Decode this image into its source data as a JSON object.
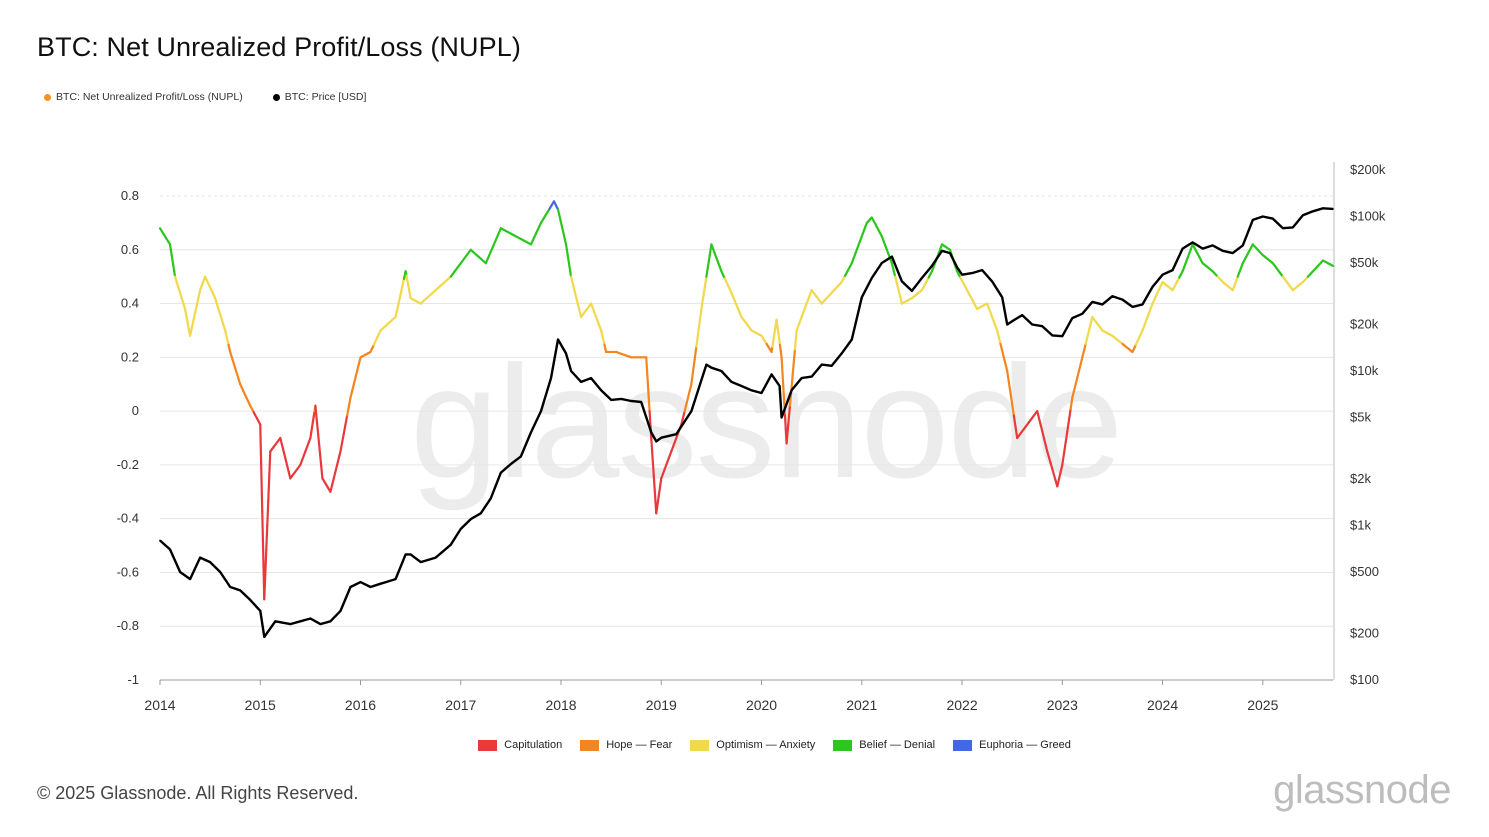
{
  "title": "BTC: Net Unrealized Profit/Loss (NUPL)",
  "top_legend": [
    {
      "label": "BTC: Net Unrealized Profit/Loss (NUPL)",
      "color": "#f7931a"
    },
    {
      "label": "BTC: Price [USD]",
      "color": "#000000"
    }
  ],
  "zone_legend": [
    {
      "label": "Capitulation",
      "color": "#e8393b"
    },
    {
      "label": "Hope — Fear",
      "color": "#f5851f"
    },
    {
      "label": "Optimism — Anxiety",
      "color": "#f2d84b"
    },
    {
      "label": "Belief — Denial",
      "color": "#2cc71e"
    },
    {
      "label": "Euphoria — Greed",
      "color": "#4466e8"
    }
  ],
  "watermark": "glassnode",
  "copyright": "© 2025 Glassnode. All Rights Reserved.",
  "brand": "glassnode",
  "chart_data": {
    "type": "line",
    "title": "BTC: Net Unrealized Profit/Loss (NUPL)",
    "x_ticks": [
      "2014",
      "2015",
      "2016",
      "2017",
      "2018",
      "2019",
      "2020",
      "2021",
      "2022",
      "2023",
      "2024",
      "2025"
    ],
    "x_range": [
      2014.0,
      2025.7
    ],
    "left_axis": {
      "ticks": [
        "0.8",
        "0.6",
        "0.4",
        "0.2",
        "0",
        "-0.2",
        "-0.4",
        "-0.6",
        "-0.8",
        "-1"
      ],
      "range": [
        -1,
        0.8
      ]
    },
    "right_axis": {
      "scale": "log",
      "ticks": [
        "$200k",
        "$100k",
        "$50k",
        "$20k",
        "$10k",
        "$5k",
        "$2k",
        "$1k",
        "$500",
        "$200",
        "$100"
      ],
      "range": [
        100,
        200000
      ]
    },
    "grid": true,
    "zones": [
      {
        "name": "Capitulation",
        "max": 0,
        "color": "#e8393b"
      },
      {
        "name": "Hope — Fear",
        "min": 0,
        "max": 0.25,
        "color": "#f5851f"
      },
      {
        "name": "Optimism — Anxiety",
        "min": 0.25,
        "max": 0.5,
        "color": "#f2d84b"
      },
      {
        "name": "Belief — Denial",
        "min": 0.5,
        "max": 0.75,
        "color": "#2cc71e"
      },
      {
        "name": "Euphoria — Greed",
        "min": 0.75,
        "color": "#4466e8"
      }
    ],
    "series": [
      {
        "name": "BTC: Net Unrealized Profit/Loss (NUPL)",
        "axis": "left",
        "x": [
          2014.0,
          2014.1,
          2014.15,
          2014.25,
          2014.3,
          2014.4,
          2014.45,
          2014.55,
          2014.65,
          2014.7,
          2014.8,
          2014.9,
          2015.0,
          2015.04,
          2015.1,
          2015.2,
          2015.3,
          2015.4,
          2015.5,
          2015.55,
          2015.62,
          2015.7,
          2015.8,
          2015.9,
          2016.0,
          2016.1,
          2016.2,
          2016.35,
          2016.45,
          2016.5,
          2016.6,
          2016.75,
          2016.9,
          2017.0,
          2017.1,
          2017.25,
          2017.4,
          2017.55,
          2017.7,
          2017.8,
          2017.93,
          2017.97,
          2018.05,
          2018.1,
          2018.2,
          2018.3,
          2018.4,
          2018.45,
          2018.55,
          2018.7,
          2018.85,
          2018.9,
          2018.95,
          2019.0,
          2019.1,
          2019.2,
          2019.3,
          2019.4,
          2019.5,
          2019.6,
          2019.7,
          2019.8,
          2019.9,
          2020.0,
          2020.1,
          2020.15,
          2020.2,
          2020.25,
          2020.35,
          2020.5,
          2020.6,
          2020.7,
          2020.8,
          2020.9,
          2021.0,
          2021.05,
          2021.1,
          2021.2,
          2021.3,
          2021.4,
          2021.5,
          2021.6,
          2021.7,
          2021.8,
          2021.88,
          2021.95,
          2022.05,
          2022.15,
          2022.25,
          2022.35,
          2022.45,
          2022.55,
          2022.65,
          2022.75,
          2022.85,
          2022.95,
          2023.0,
          2023.1,
          2023.2,
          2023.3,
          2023.4,
          2023.5,
          2023.6,
          2023.7,
          2023.8,
          2023.9,
          2024.0,
          2024.1,
          2024.2,
          2024.3,
          2024.4,
          2024.5,
          2024.6,
          2024.7,
          2024.8,
          2024.9,
          2025.0,
          2025.1,
          2025.2,
          2025.3,
          2025.4,
          2025.5,
          2025.6,
          2025.7
        ],
        "y": [
          0.68,
          0.62,
          0.5,
          0.38,
          0.28,
          0.45,
          0.5,
          0.42,
          0.3,
          0.22,
          0.1,
          0.02,
          -0.05,
          -0.7,
          -0.15,
          -0.1,
          -0.25,
          -0.2,
          -0.1,
          0.02,
          -0.25,
          -0.3,
          -0.15,
          0.05,
          0.2,
          0.22,
          0.3,
          0.35,
          0.52,
          0.42,
          0.4,
          0.45,
          0.5,
          0.55,
          0.6,
          0.55,
          0.68,
          0.65,
          0.62,
          0.7,
          0.78,
          0.75,
          0.62,
          0.5,
          0.35,
          0.4,
          0.3,
          0.22,
          0.22,
          0.2,
          0.2,
          -0.1,
          -0.38,
          -0.25,
          -0.15,
          -0.05,
          0.1,
          0.38,
          0.62,
          0.52,
          0.44,
          0.35,
          0.3,
          0.28,
          0.22,
          0.34,
          0.2,
          -0.12,
          0.3,
          0.45,
          0.4,
          0.44,
          0.48,
          0.55,
          0.65,
          0.7,
          0.72,
          0.65,
          0.55,
          0.4,
          0.42,
          0.45,
          0.52,
          0.62,
          0.6,
          0.52,
          0.45,
          0.38,
          0.4,
          0.3,
          0.15,
          -0.1,
          -0.05,
          0.0,
          -0.15,
          -0.28,
          -0.2,
          0.05,
          0.2,
          0.35,
          0.3,
          0.28,
          0.25,
          0.22,
          0.3,
          0.4,
          0.48,
          0.45,
          0.52,
          0.62,
          0.55,
          0.52,
          0.48,
          0.45,
          0.55,
          0.62,
          0.58,
          0.55,
          0.5,
          0.45,
          0.48,
          0.52,
          0.56,
          0.54
        ]
      },
      {
        "name": "BTC: Price [USD]",
        "axis": "right",
        "x": [
          2014.0,
          2014.1,
          2014.2,
          2014.3,
          2014.4,
          2014.5,
          2014.6,
          2014.7,
          2014.8,
          2014.9,
          2015.0,
          2015.04,
          2015.15,
          2015.3,
          2015.4,
          2015.5,
          2015.6,
          2015.7,
          2015.8,
          2015.9,
          2016.0,
          2016.1,
          2016.2,
          2016.35,
          2016.45,
          2016.5,
          2016.6,
          2016.75,
          2016.9,
          2017.0,
          2017.1,
          2017.2,
          2017.3,
          2017.4,
          2017.5,
          2017.6,
          2017.7,
          2017.8,
          2017.9,
          2017.97,
          2018.05,
          2018.1,
          2018.2,
          2018.3,
          2018.4,
          2018.5,
          2018.6,
          2018.7,
          2018.8,
          2018.9,
          2018.95,
          2019.0,
          2019.15,
          2019.3,
          2019.45,
          2019.5,
          2019.6,
          2019.7,
          2019.8,
          2019.9,
          2020.0,
          2020.1,
          2020.18,
          2020.2,
          2020.3,
          2020.4,
          2020.5,
          2020.6,
          2020.7,
          2020.8,
          2020.9,
          2021.0,
          2021.1,
          2021.2,
          2021.3,
          2021.4,
          2021.5,
          2021.6,
          2021.7,
          2021.8,
          2021.88,
          2021.95,
          2022.0,
          2022.1,
          2022.2,
          2022.3,
          2022.4,
          2022.45,
          2022.5,
          2022.6,
          2022.7,
          2022.8,
          2022.9,
          2023.0,
          2023.1,
          2023.2,
          2023.3,
          2023.4,
          2023.5,
          2023.6,
          2023.7,
          2023.8,
          2023.9,
          2024.0,
          2024.1,
          2024.2,
          2024.3,
          2024.4,
          2024.5,
          2024.6,
          2024.7,
          2024.8,
          2024.9,
          2025.0,
          2025.1,
          2025.2,
          2025.3,
          2025.4,
          2025.5,
          2025.6,
          2025.7
        ],
        "y": [
          800,
          700,
          500,
          450,
          620,
          580,
          500,
          400,
          380,
          330,
          280,
          190,
          240,
          230,
          240,
          250,
          230,
          240,
          280,
          400,
          430,
          400,
          420,
          450,
          650,
          650,
          580,
          620,
          750,
          950,
          1100,
          1200,
          1500,
          2200,
          2500,
          2800,
          4000,
          5500,
          9000,
          16000,
          13000,
          10000,
          8500,
          9000,
          7500,
          6500,
          6600,
          6400,
          6300,
          4000,
          3500,
          3700,
          3900,
          5500,
          11000,
          10500,
          10000,
          8500,
          8000,
          7500,
          7200,
          9500,
          8000,
          5000,
          7500,
          9000,
          9200,
          11000,
          10800,
          13000,
          16000,
          30000,
          40000,
          50000,
          55000,
          38000,
          33000,
          40000,
          48000,
          60000,
          58000,
          47000,
          42000,
          43000,
          45000,
          38000,
          30000,
          20000,
          21000,
          23000,
          20000,
          19500,
          17000,
          16800,
          22000,
          23500,
          28000,
          27000,
          30500,
          29000,
          26000,
          27000,
          35000,
          42000,
          45000,
          62000,
          68000,
          62000,
          65000,
          60000,
          58000,
          65000,
          95000,
          100000,
          97000,
          84000,
          85000,
          102000,
          108000,
          113000,
          112000
        ]
      }
    ]
  }
}
